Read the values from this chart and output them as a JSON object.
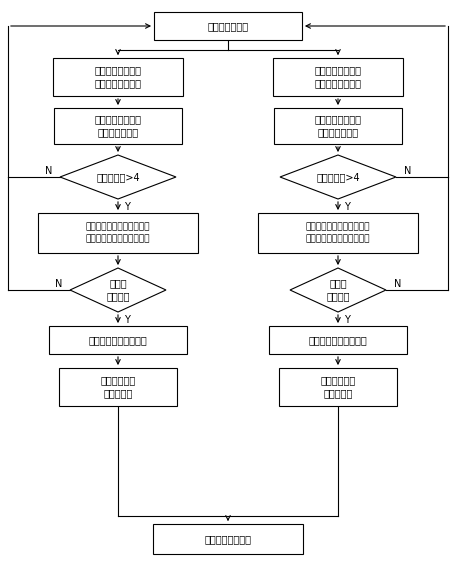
{
  "bg_color": "#ffffff",
  "font_size": 7.0,
  "nodes": {
    "top_text": "等待观测量中断",
    "left_del_text": "删除重复卫星和故\n障卫星的观测数据",
    "right_del_text": "删除重复卫星和故\n障卫星的观测数据",
    "left_calc_text": "主处理单元计算观\n测量和本地时间",
    "right_calc_text": "副处理单元计算观\n测量和本地时间",
    "left_dia1_text": "可用卫星数>4",
    "right_dia1_text": "可用卫星数>4",
    "left_eph_text": "读取对应卫星星历、钟差等\n参数，解算卫星位置和速度",
    "right_eph_text": "读取对应卫星星历、钟差等\n参数，解算卫星位置和速度",
    "left_dia2_text": "位置有\n效性判断",
    "right_dia2_text": "位置有\n效性判断",
    "left_solve_text": "解算码单点定位、测速",
    "right_solve_text": "解算码单点定位、测速",
    "left_gen_text": "生成主处理单\n元差分数据",
    "right_gen_text": "生成主处理单\n元差分数据",
    "bottom_text": "差分数据处理模块"
  }
}
